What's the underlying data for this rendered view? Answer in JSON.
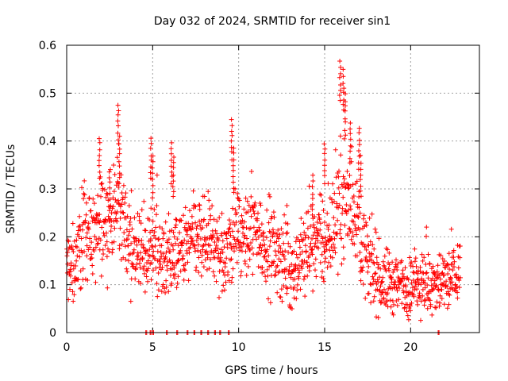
{
  "chart_data": {
    "type": "scatter",
    "title": "Day 032 of 2024, SRMTID for receiver sin1",
    "xlabel": "GPS time / hours",
    "ylabel": "SRMTID / TECUs",
    "xlim": [
      0,
      24
    ],
    "ylim": [
      0,
      0.6
    ],
    "x_ticks": [
      0,
      5,
      10,
      15,
      20
    ],
    "x_tick_labels": [
      "0",
      "5",
      "10",
      "15",
      "20"
    ],
    "y_ticks": [
      0,
      0.1,
      0.2,
      0.3,
      0.4,
      0.5,
      0.6
    ],
    "y_tick_labels": [
      "0",
      "0.1",
      "0.2",
      "0.3",
      "0.4",
      "0.5",
      "0.6"
    ],
    "grid": true,
    "marker": "plus",
    "marker_color": "#ff0000",
    "x_range_data": [
      0,
      22.9
    ],
    "series": [
      {
        "name": "SRMTID",
        "x": [
          0.0,
          0.25,
          0.5,
          0.75,
          1.0,
          1.25,
          1.5,
          1.75,
          2.0,
          2.25,
          2.5,
          2.75,
          3.0,
          3.25,
          3.5,
          3.75,
          4.0,
          4.25,
          4.5,
          4.75,
          5.0,
          5.25,
          5.5,
          5.75,
          6.0,
          6.25,
          6.5,
          6.75,
          7.0,
          7.25,
          7.5,
          7.75,
          8.0,
          8.25,
          8.5,
          8.75,
          9.0,
          9.25,
          9.5,
          9.75,
          10.0,
          10.25,
          10.5,
          10.75,
          11.0,
          11.25,
          11.5,
          11.75,
          12.0,
          12.25,
          12.5,
          12.75,
          13.0,
          13.25,
          13.5,
          13.75,
          14.0,
          14.25,
          14.5,
          14.75,
          15.0,
          15.25,
          15.5,
          15.75,
          16.0,
          16.25,
          16.5,
          16.75,
          17.0,
          17.25,
          17.5,
          17.75,
          18.0,
          18.25,
          18.5,
          18.75,
          19.0,
          19.25,
          19.5,
          19.75,
          20.0,
          20.25,
          20.5,
          20.75,
          21.0,
          21.25,
          21.5,
          21.75,
          22.0,
          22.25,
          22.5,
          22.75
        ],
        "y": [
          0.14,
          0.13,
          0.15,
          0.18,
          0.2,
          0.21,
          0.19,
          0.2,
          0.23,
          0.24,
          0.22,
          0.25,
          0.28,
          0.24,
          0.21,
          0.19,
          0.17,
          0.16,
          0.15,
          0.16,
          0.18,
          0.17,
          0.15,
          0.16,
          0.17,
          0.15,
          0.16,
          0.17,
          0.18,
          0.19,
          0.2,
          0.19,
          0.18,
          0.19,
          0.2,
          0.18,
          0.15,
          0.16,
          0.18,
          0.2,
          0.21,
          0.2,
          0.19,
          0.21,
          0.22,
          0.2,
          0.19,
          0.18,
          0.17,
          0.16,
          0.15,
          0.16,
          0.13,
          0.12,
          0.14,
          0.16,
          0.18,
          0.19,
          0.2,
          0.19,
          0.18,
          0.2,
          0.22,
          0.25,
          0.27,
          0.28,
          0.27,
          0.25,
          0.22,
          0.18,
          0.15,
          0.13,
          0.12,
          0.11,
          0.1,
          0.11,
          0.1,
          0.09,
          0.11,
          0.1,
          0.09,
          0.1,
          0.11,
          0.12,
          0.1,
          0.09,
          0.1,
          0.11,
          0.1,
          0.11,
          0.12,
          0.13
        ]
      }
    ],
    "peaks": {
      "x": [
        1.9,
        2.5,
        3.0,
        3.05,
        4.9,
        5.0,
        6.1,
        6.2,
        9.6,
        9.7,
        14.3,
        15.0,
        15.9,
        16.1,
        16.2,
        16.5,
        17.0,
        17.1
      ],
      "y": [
        0.41,
        0.34,
        0.48,
        0.41,
        0.41,
        0.37,
        0.4,
        0.37,
        0.45,
        0.39,
        0.33,
        0.4,
        0.57,
        0.55,
        0.5,
        0.44,
        0.43,
        0.37
      ]
    },
    "zero_markers": {
      "x": [
        4.6,
        4.85,
        5.0,
        5.8,
        6.4,
        7.0,
        7.4,
        7.8,
        8.2,
        8.6,
        8.9,
        9.4,
        21.6
      ]
    }
  }
}
